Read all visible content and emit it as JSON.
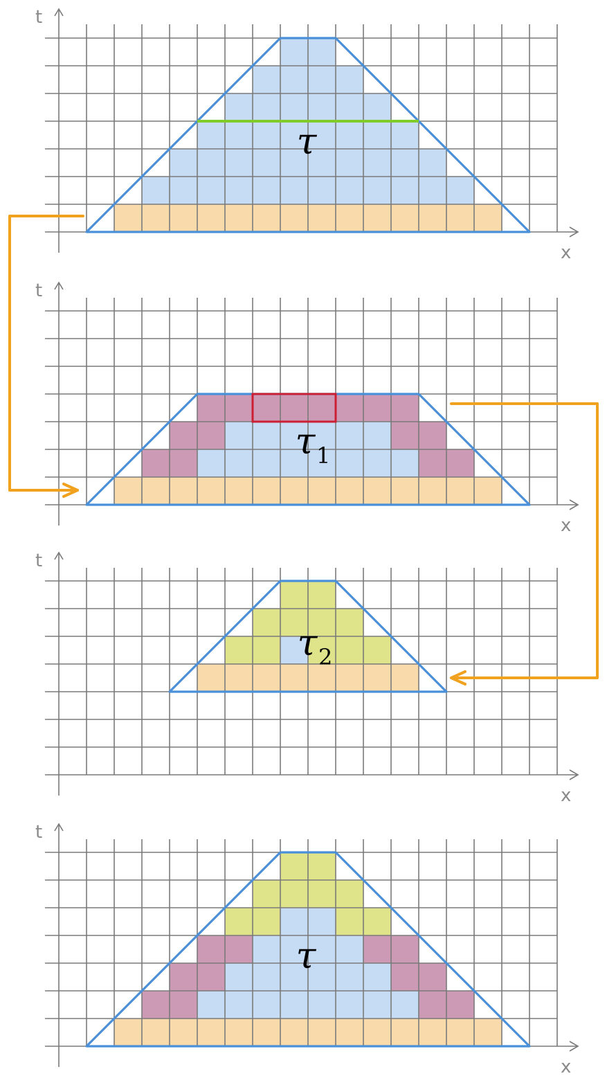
{
  "colors": {
    "grid": "#7a7a7a",
    "axis_label": "#8a8a8a",
    "trapezoid": "#4a90d9",
    "blue": "#c6dcf4",
    "orange": "#f9dbab",
    "purple": "#cc9ab4",
    "yellow": "#dfe38a",
    "green_line": "#7fcc2a",
    "red_box": "#cc1f33",
    "connector": "#f0a11e"
  },
  "panels": [
    {
      "id": "panel-1",
      "x_label": "x",
      "t_label": "t",
      "tau_symbol": "τ",
      "tau_subscript": "",
      "rows": [
        {
          "row": 0,
          "segments": [
            {
              "from": 2,
              "to": 15,
              "color": "orange"
            }
          ]
        },
        {
          "row": 1,
          "segments": [
            {
              "from": 3,
              "to": 14,
              "color": "blue"
            }
          ]
        },
        {
          "row": 2,
          "segments": [
            {
              "from": 4,
              "to": 13,
              "color": "blue"
            }
          ]
        },
        {
          "row": 3,
          "segments": [
            {
              "from": 5,
              "to": 12,
              "color": "blue"
            }
          ]
        },
        {
          "row": 4,
          "segments": [
            {
              "from": 6,
              "to": 11,
              "color": "blue"
            }
          ]
        },
        {
          "row": 5,
          "segments": [
            {
              "from": 7,
              "to": 10,
              "color": "blue"
            }
          ]
        },
        {
          "row": 6,
          "segments": [
            {
              "from": 8,
              "to": 9,
              "color": "blue"
            }
          ]
        }
      ],
      "trapezoid": {
        "bottom_from": 1,
        "bottom_to": 17,
        "top_from": 8,
        "top_to": 10,
        "height": 7
      },
      "green_line": {
        "row_line": 4,
        "from": 5,
        "to": 13
      }
    },
    {
      "id": "panel-2",
      "x_label": "x",
      "t_label": "t",
      "tau_symbol": "τ",
      "tau_subscript": "1",
      "rows": [
        {
          "row": 0,
          "segments": [
            {
              "from": 2,
              "to": 15,
              "color": "orange"
            }
          ]
        },
        {
          "row": 1,
          "segments": [
            {
              "from": 3,
              "to": 4,
              "color": "purple"
            },
            {
              "from": 5,
              "to": 12,
              "color": "blue"
            },
            {
              "from": 13,
              "to": 14,
              "color": "purple"
            }
          ]
        },
        {
          "row": 2,
          "segments": [
            {
              "from": 4,
              "to": 5,
              "color": "purple"
            },
            {
              "from": 6,
              "to": 11,
              "color": "blue"
            },
            {
              "from": 12,
              "to": 13,
              "color": "purple"
            }
          ]
        },
        {
          "row": 3,
          "segments": [
            {
              "from": 5,
              "to": 12,
              "color": "purple"
            }
          ]
        }
      ],
      "trapezoid": {
        "bottom_from": 1,
        "bottom_to": 17,
        "top_from": 5,
        "top_to": 13,
        "height": 4
      },
      "red_box": {
        "row": 3,
        "from": 7,
        "to": 10
      }
    },
    {
      "id": "panel-3",
      "x_label": "x",
      "t_label": "t",
      "tau_symbol": "τ",
      "tau_subscript": "2",
      "rows": [
        {
          "row": 3,
          "segments": [
            {
              "from": 5,
              "to": 12,
              "color": "orange"
            }
          ]
        },
        {
          "row": 4,
          "segments": [
            {
              "from": 6,
              "to": 7,
              "color": "yellow"
            },
            {
              "from": 8,
              "to": 8,
              "color": "blue"
            },
            {
              "from": 9,
              "to": 11,
              "color": "yellow"
            }
          ]
        },
        {
          "row": 5,
          "segments": [
            {
              "from": 7,
              "to": 10,
              "color": "yellow"
            }
          ]
        },
        {
          "row": 6,
          "segments": [
            {
              "from": 8,
              "to": 9,
              "color": "yellow"
            }
          ]
        }
      ],
      "trapezoid": {
        "bottom_from": 4,
        "bottom_to": 14,
        "top_from": 8,
        "top_to": 10,
        "height": 4,
        "base_row": 3
      }
    },
    {
      "id": "panel-4",
      "x_label": "x",
      "t_label": "t",
      "tau_symbol": "τ",
      "tau_subscript": "",
      "rows": [
        {
          "row": 0,
          "segments": [
            {
              "from": 2,
              "to": 15,
              "color": "orange"
            }
          ]
        },
        {
          "row": 1,
          "segments": [
            {
              "from": 3,
              "to": 4,
              "color": "purple"
            },
            {
              "from": 5,
              "to": 12,
              "color": "blue"
            },
            {
              "from": 13,
              "to": 14,
              "color": "purple"
            }
          ]
        },
        {
          "row": 2,
          "segments": [
            {
              "from": 4,
              "to": 5,
              "color": "purple"
            },
            {
              "from": 6,
              "to": 11,
              "color": "blue"
            },
            {
              "from": 12,
              "to": 13,
              "color": "purple"
            }
          ]
        },
        {
          "row": 3,
          "segments": [
            {
              "from": 5,
              "to": 6,
              "color": "purple"
            },
            {
              "from": 7,
              "to": 10,
              "color": "blue"
            },
            {
              "from": 11,
              "to": 12,
              "color": "purple"
            }
          ]
        },
        {
          "row": 4,
          "segments": [
            {
              "from": 6,
              "to": 7,
              "color": "yellow"
            },
            {
              "from": 8,
              "to": 9,
              "color": "blue"
            },
            {
              "from": 10,
              "to": 11,
              "color": "yellow"
            }
          ]
        },
        {
          "row": 5,
          "segments": [
            {
              "from": 7,
              "to": 10,
              "color": "yellow"
            }
          ]
        },
        {
          "row": 6,
          "segments": [
            {
              "from": 8,
              "to": 9,
              "color": "yellow"
            }
          ]
        }
      ],
      "trapezoid": {
        "bottom_from": 1,
        "bottom_to": 17,
        "top_from": 8,
        "top_to": 10,
        "height": 7
      }
    }
  ]
}
